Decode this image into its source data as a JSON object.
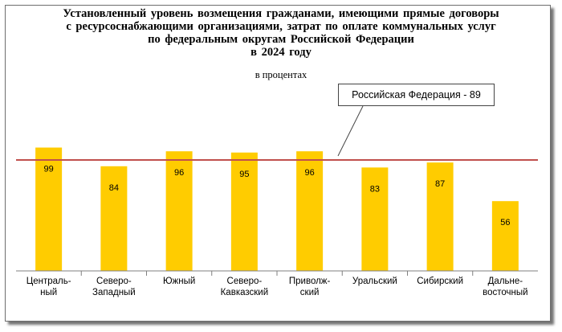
{
  "title_lines": [
    "Установленный уровень возмещения гражданами, имеющими прямые договоры",
    "с ресурсоснабжающими организациями, затрат по оплате коммунальных услуг",
    "по федеральным округам Российской Федерации",
    "в 2024 году"
  ],
  "subtitle": "в процентах",
  "reference": {
    "label": "Российская Федерация - 89",
    "value": 89,
    "line_color": "#C0504D"
  },
  "chart_data": {
    "type": "bar",
    "title": "Установленный уровень возмещения гражданами, имеющими прямые договоры с ресурсоснабжающими организациями, затрат по оплате коммунальных услуг по федеральным округам Российской Федерации в 2024 году",
    "subtitle": "в процентах",
    "categories": [
      [
        "Централь-",
        "ный"
      ],
      [
        "Северо-",
        "Западный"
      ],
      [
        "Южный"
      ],
      [
        "Северо-",
        "Кавказский"
      ],
      [
        "Приволж-",
        "ский"
      ],
      [
        "Уральский"
      ],
      [
        "Сибирский"
      ],
      [
        "Дальне-",
        "восточный"
      ]
    ],
    "values": [
      99,
      84,
      96,
      95,
      96,
      83,
      87,
      56
    ],
    "ylim": [
      0,
      125
    ],
    "bar_color": "#FFCC00",
    "grid": false,
    "legend": "none"
  }
}
